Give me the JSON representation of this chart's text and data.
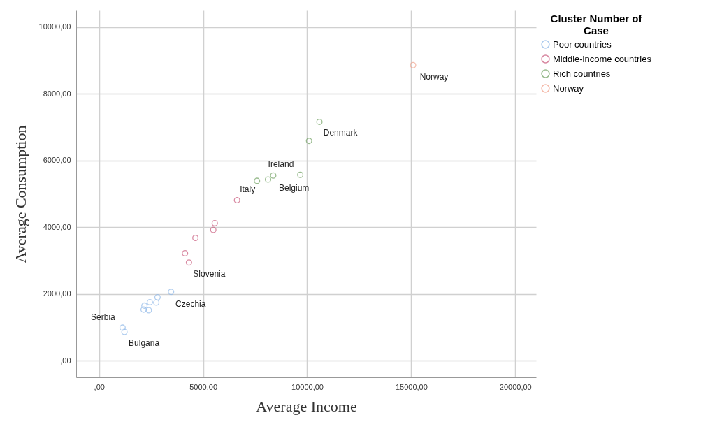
{
  "chart_data": {
    "type": "scatter",
    "xlabel": "Average Income",
    "ylabel": "Average Consumption",
    "legend_title": "Cluster Number of Case",
    "legend": "right",
    "grid": true,
    "marker": "circle",
    "xlim": [
      -1100,
      21000
    ],
    "ylim": [
      -500,
      10500
    ],
    "xticks": [
      {
        "value": 0,
        "label": ",00"
      },
      {
        "value": 5000,
        "label": "5000,00"
      },
      {
        "value": 10000,
        "label": "10000,00"
      },
      {
        "value": 15000,
        "label": "15000,00"
      },
      {
        "value": 20000,
        "label": "20000,00"
      }
    ],
    "yticks": [
      {
        "value": 0,
        "label": ",00"
      },
      {
        "value": 2000,
        "label": "2000,00"
      },
      {
        "value": 4000,
        "label": "4000,00"
      },
      {
        "value": 6000,
        "label": "6000,00"
      },
      {
        "value": 8000,
        "label": "8000,00"
      },
      {
        "value": 10000,
        "label": "10000,00"
      }
    ],
    "series": [
      {
        "name": "Poor countries",
        "color": "#8fb8e8",
        "x": [
          1130,
          1220,
          2140,
          2180,
          2390,
          2440,
          2750,
          2810,
          3460
        ],
        "values": [
          990,
          860,
          1530,
          1650,
          1510,
          1750,
          1740,
          1900,
          2060
        ]
      },
      {
        "name": "Middle-income countries",
        "color": "#c8577a",
        "x": [
          4320,
          4130,
          4630,
          5490,
          5560,
          6630
        ],
        "values": [
          2940,
          3220,
          3680,
          3920,
          4120,
          4810
        ]
      },
      {
        "name": "Rich countries",
        "color": "#6fa060",
        "x": [
          7590,
          8120,
          8370,
          9670,
          10090,
          10590
        ],
        "values": [
          5390,
          5430,
          5550,
          5570,
          6590,
          7160
        ]
      },
      {
        "name": "Norway",
        "color": "#f0a08a",
        "x": [
          15090
        ],
        "values": [
          8860
        ]
      }
    ],
    "annotations": [
      {
        "text": "Norway",
        "x": 15090,
        "y": 8860
      },
      {
        "text": "Denmark",
        "x": 10590,
        "y": 7160
      },
      {
        "text": "Ireland",
        "x": 8370,
        "y": 5550
      },
      {
        "text": "Belgium",
        "x": 9670,
        "y": 5570
      },
      {
        "text": "Italy",
        "x": 6630,
        "y": 4810
      },
      {
        "text": "Slovenia",
        "x": 4320,
        "y": 2940
      },
      {
        "text": "Czechia",
        "x": 3460,
        "y": 2060
      },
      {
        "text": "Serbia",
        "x": 1130,
        "y": 990
      },
      {
        "text": "Bulgaria",
        "x": 1220,
        "y": 860
      }
    ]
  }
}
